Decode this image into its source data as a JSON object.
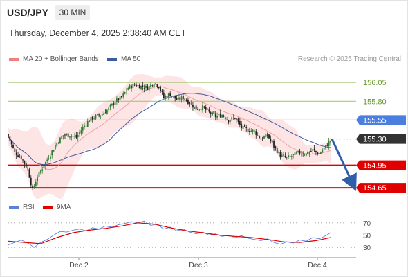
{
  "header": {
    "symbol": "USD/JPY",
    "timeframe": "30 MIN",
    "timestamp": "Thursday, December 4, 2025 2:38:40 AM CET"
  },
  "legend": {
    "ma20": "MA 20 + Bollinger Bands",
    "ma50": "MA 50",
    "research": "Research © 2025 Trading Central",
    "rsi": "RSI",
    "nine_ma": "9MA"
  },
  "colors": {
    "up_candle": "#2e7d32",
    "down_candle": "#222222",
    "bollinger_fill": "#fde2e2",
    "ma20": "#f0a0a0",
    "ma50": "#3b5b9e",
    "resistance": "#9dc36a",
    "pivot": "#4a7fe0",
    "support": "#e00000",
    "current": "#333333",
    "rsi": "#5b7fdc",
    "rsi_ma": "#e00000"
  },
  "chart_data": [
    {
      "type": "candlestick",
      "title": "USD/JPY",
      "timeframe": "30 MIN",
      "x_ticks": [
        "Dec 2",
        "Dec 3",
        "Dec 4"
      ],
      "ylim": [
        154.55,
        156.3
      ],
      "series": [
        {
          "name": "MA 20 + Bollinger Bands",
          "kind": "moving-average-with-bands"
        },
        {
          "name": "MA 50",
          "kind": "moving-average"
        }
      ],
      "close_path": [
        [
          0,
          155.33
        ],
        [
          4,
          155.12
        ],
        [
          8,
          155.05
        ],
        [
          12,
          154.9
        ],
        [
          15,
          154.62
        ],
        [
          18,
          154.8
        ],
        [
          22,
          154.95
        ],
        [
          26,
          155.1
        ],
        [
          30,
          155.25
        ],
        [
          34,
          155.35
        ],
        [
          38,
          155.35
        ],
        [
          42,
          155.32
        ],
        [
          46,
          155.45
        ],
        [
          50,
          155.55
        ],
        [
          54,
          155.6
        ],
        [
          58,
          155.63
        ],
        [
          62,
          155.7
        ],
        [
          66,
          155.8
        ],
        [
          70,
          155.85
        ],
        [
          74,
          155.98
        ],
        [
          78,
          156.02
        ],
        [
          82,
          156.0
        ],
        [
          86,
          155.98
        ],
        [
          90,
          156.05
        ],
        [
          93,
          156.0
        ],
        [
          96,
          155.85
        ],
        [
          100,
          155.9
        ],
        [
          104,
          155.82
        ],
        [
          108,
          155.85
        ],
        [
          112,
          155.78
        ],
        [
          116,
          155.7
        ],
        [
          120,
          155.72
        ],
        [
          124,
          155.65
        ],
        [
          128,
          155.6
        ],
        [
          132,
          155.62
        ],
        [
          136,
          155.55
        ],
        [
          140,
          155.58
        ],
        [
          144,
          155.45
        ],
        [
          148,
          155.42
        ],
        [
          152,
          155.4
        ],
        [
          156,
          155.3
        ],
        [
          160,
          155.35
        ],
        [
          164,
          155.2
        ],
        [
          168,
          155.08
        ],
        [
          172,
          155.05
        ],
        [
          176,
          155.08
        ],
        [
          180,
          155.12
        ],
        [
          184,
          155.1
        ],
        [
          188,
          155.15
        ],
        [
          192,
          155.1
        ],
        [
          196,
          155.2
        ],
        [
          199,
          155.28
        ]
      ],
      "levels": [
        {
          "value": 156.05,
          "label": "156.05",
          "type": "resistance"
        },
        {
          "value": 155.8,
          "label": "155.80",
          "type": "resistance"
        },
        {
          "value": 155.55,
          "label": "155.55",
          "type": "pivot"
        },
        {
          "value": 155.3,
          "label": "155.30",
          "type": "current"
        },
        {
          "value": 154.95,
          "label": "154.95",
          "type": "support"
        },
        {
          "value": 154.65,
          "label": "154.65",
          "type": "support"
        }
      ],
      "forecast": {
        "from": 155.3,
        "to": 154.65,
        "direction": "down"
      }
    },
    {
      "type": "line",
      "title": "RSI",
      "ylim": [
        20,
        80
      ],
      "y_ticks": [
        70,
        50,
        30
      ],
      "series": [
        {
          "name": "RSI",
          "points": [
            [
              0,
              34
            ],
            [
              4,
              38
            ],
            [
              8,
              42
            ],
            [
              12,
              37
            ],
            [
              16,
              30
            ],
            [
              20,
              38
            ],
            [
              24,
              43
            ],
            [
              28,
              50
            ],
            [
              32,
              56
            ],
            [
              36,
              55
            ],
            [
              40,
              58
            ],
            [
              44,
              60
            ],
            [
              48,
              57
            ],
            [
              52,
              62
            ],
            [
              56,
              60
            ],
            [
              60,
              65
            ],
            [
              64,
              63
            ],
            [
              68,
              67
            ],
            [
              72,
              69
            ],
            [
              76,
              72
            ],
            [
              80,
              70
            ],
            [
              84,
              73
            ],
            [
              88,
              66
            ],
            [
              92,
              68
            ],
            [
              96,
              60
            ],
            [
              100,
              63
            ],
            [
              104,
              57
            ],
            [
              108,
              60
            ],
            [
              112,
              55
            ],
            [
              116,
              52
            ],
            [
              120,
              55
            ],
            [
              124,
              50
            ],
            [
              128,
              52
            ],
            [
              132,
              48
            ],
            [
              136,
              50
            ],
            [
              140,
              46
            ],
            [
              144,
              49
            ],
            [
              148,
              45
            ],
            [
              152,
              43
            ],
            [
              156,
              41
            ],
            [
              160,
              44
            ],
            [
              164,
              38
            ],
            [
              168,
              35
            ],
            [
              172,
              39
            ],
            [
              176,
              37
            ],
            [
              180,
              42
            ],
            [
              184,
              40
            ],
            [
              188,
              46
            ],
            [
              192,
              44
            ],
            [
              196,
              49
            ],
            [
              199,
              54
            ]
          ]
        },
        {
          "name": "9MA",
          "points": [
            [
              0,
              40
            ],
            [
              10,
              38
            ],
            [
              20,
              36
            ],
            [
              30,
              46
            ],
            [
              40,
              54
            ],
            [
              50,
              58
            ],
            [
              60,
              61
            ],
            [
              70,
              65
            ],
            [
              80,
              70
            ],
            [
              90,
              68
            ],
            [
              100,
              62
            ],
            [
              110,
              57
            ],
            [
              120,
              54
            ],
            [
              130,
              50
            ],
            [
              140,
              48
            ],
            [
              150,
              46
            ],
            [
              160,
              43
            ],
            [
              170,
              39
            ],
            [
              180,
              38
            ],
            [
              190,
              41
            ],
            [
              199,
              46
            ]
          ]
        }
      ]
    }
  ]
}
